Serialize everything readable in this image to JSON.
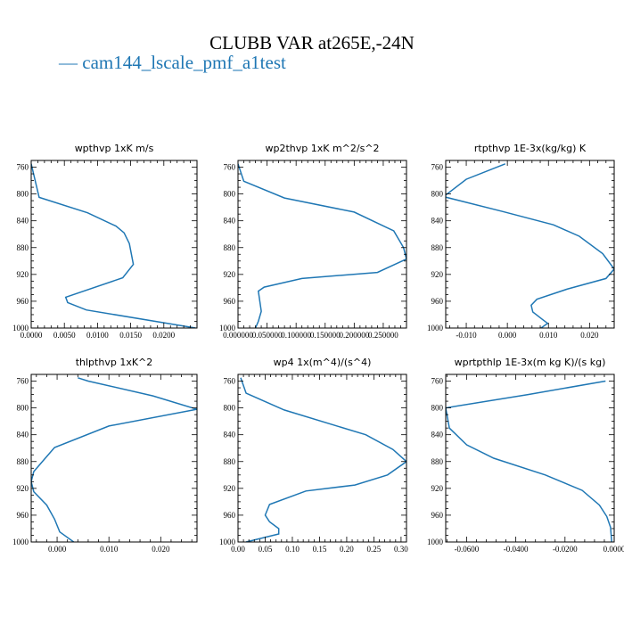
{
  "figure": {
    "title": "CLUBB VAR at265E,-24N",
    "legend_dash": "—",
    "legend_label": "cam144_lscale_pmf_a1test",
    "line_color": "#1f77b4"
  },
  "chart_data": [
    {
      "type": "line",
      "title": "wpthvp   1xK m/s",
      "xlim": [
        0,
        0.025
      ],
      "ylim": [
        1000,
        750
      ],
      "x_ticks": [
        0.0,
        0.005,
        0.01,
        0.015,
        0.02
      ],
      "x_tick_labels": [
        "0.0000",
        "0.0050",
        "0.0100",
        "0.0150",
        "0.0200"
      ],
      "y_ticks": [
        760,
        800,
        840,
        880,
        920,
        960,
        1000
      ],
      "y_tick_labels": [
        "760",
        "800",
        "840",
        "880",
        "920",
        "960",
        "1000"
      ],
      "series": [
        {
          "x": [
            0.0,
            0.0012,
            0.0085,
            0.0128,
            0.014,
            0.0148,
            0.0154,
            0.0138,
            0.0052,
            0.0055,
            0.0083,
            0.0248
          ],
          "y": [
            755,
            805,
            828,
            848,
            858,
            874,
            905,
            925,
            954,
            962,
            973,
            1000
          ]
        }
      ]
    },
    {
      "type": "line",
      "title": "wp2thvp   1xK m^2/s^2",
      "xlim": [
        0,
        0.29
      ],
      "ylim": [
        1000,
        750
      ],
      "x_ticks": [
        0,
        0.05,
        0.1,
        0.15,
        0.2,
        0.25
      ],
      "x_tick_labels": [
        "0.000000",
        "0.050000",
        "0.100000",
        "0.150000",
        "0.200000",
        "0.250000"
      ],
      "y_ticks": [
        760,
        800,
        840,
        880,
        920,
        960,
        1000
      ],
      "y_tick_labels": [
        "760",
        "800",
        "840",
        "880",
        "920",
        "960",
        "1000"
      ],
      "series": [
        {
          "x": [
            0.0,
            0.01,
            0.08,
            0.2,
            0.268,
            0.285,
            0.29,
            0.24,
            0.11,
            0.045,
            0.035,
            0.04,
            0.035,
            0.03
          ],
          "y": [
            755,
            781,
            806,
            827,
            855,
            880,
            897,
            917,
            926,
            939,
            945,
            975,
            990,
            1000
          ]
        }
      ]
    },
    {
      "type": "line",
      "title": "rtpthvp   1E-3x(kg/kg) K",
      "xlim": [
        -0.015,
        0.026
      ],
      "ylim": [
        1000,
        750
      ],
      "x_ticks": [
        -0.01,
        0.0,
        0.01,
        0.02
      ],
      "x_tick_labels": [
        "-0.010",
        "0.000",
        "0.010",
        "0.020"
      ],
      "y_ticks": [
        760,
        800,
        840,
        880,
        920,
        960,
        1000
      ],
      "y_tick_labels": [
        "760",
        "800",
        "840",
        "880",
        "920",
        "960",
        "1000"
      ],
      "series": [
        {
          "x": [
            -0.0005,
            -0.01,
            -0.0155,
            -0.0012,
            0.0112,
            0.0175,
            0.0232,
            0.026,
            0.024,
            0.0145,
            0.0072,
            0.0058,
            0.0062,
            0.0085,
            0.0098,
            0.0082
          ],
          "y": [
            755,
            778,
            804,
            826,
            846,
            863,
            889,
            912,
            926,
            942,
            957,
            966,
            976,
            987,
            993,
            1000
          ]
        }
      ]
    },
    {
      "type": "line",
      "title": "thlpthvp   1xK^2",
      "xlim": [
        -0.005,
        0.027
      ],
      "ylim": [
        1000,
        750
      ],
      "x_ticks": [
        0.0,
        0.01,
        0.02
      ],
      "x_tick_labels": [
        "0.000",
        "0.010",
        "0.020"
      ],
      "y_ticks": [
        760,
        800,
        840,
        880,
        920,
        960,
        1000
      ],
      "y_tick_labels": [
        "760",
        "800",
        "840",
        "880",
        "920",
        "960",
        "1000"
      ],
      "series": [
        {
          "x": [
            0.004,
            0.006,
            0.0185,
            0.027,
            0.01,
            -0.0005,
            -0.0025,
            -0.0045,
            -0.005,
            -0.0045,
            -0.002,
            -0.0005,
            0.0005,
            0.0032
          ],
          "y": [
            755,
            760,
            782,
            802,
            827,
            859,
            877,
            895,
            910,
            925,
            945,
            966,
            985,
            1000
          ]
        }
      ]
    },
    {
      "type": "line",
      "title": "wp4   1x(m^4)/(s^4)",
      "xlim": [
        0,
        0.31
      ],
      "ylim": [
        1000,
        750
      ],
      "x_ticks": [
        0.0,
        0.05,
        0.1,
        0.15,
        0.2,
        0.25,
        0.3
      ],
      "x_tick_labels": [
        "0.00",
        "0.05",
        "0.10",
        "0.15",
        "0.20",
        "0.25",
        "0.30"
      ],
      "y_ticks": [
        760,
        800,
        840,
        880,
        920,
        960,
        1000
      ],
      "y_tick_labels": [
        "760",
        "800",
        "840",
        "880",
        "920",
        "960",
        "1000"
      ],
      "series": [
        {
          "x": [
            0.005,
            0.015,
            0.085,
            0.235,
            0.285,
            0.31,
            0.275,
            0.215,
            0.125,
            0.058,
            0.05,
            0.058,
            0.075,
            0.075,
            0.045,
            0.015
          ],
          "y": [
            755,
            778,
            803,
            840,
            862,
            880,
            900,
            915,
            924,
            944,
            960,
            970,
            980,
            988,
            994,
            1000
          ]
        }
      ]
    },
    {
      "type": "line",
      "title": "wprtpthlp   1E-3x(m kg K)/(s kg)",
      "xlim": [
        -0.0685,
        0.0
      ],
      "ylim": [
        1000,
        750
      ],
      "x_ticks": [
        -0.06,
        -0.04,
        -0.02,
        0.0
      ],
      "x_tick_labels": [
        "-0.0600",
        "-0.0400",
        "-0.0200",
        "0.0000"
      ],
      "y_ticks": [
        760,
        800,
        840,
        880,
        920,
        960,
        1000
      ],
      "y_tick_labels": [
        "760",
        "800",
        "840",
        "880",
        "920",
        "960",
        "1000"
      ],
      "series": [
        {
          "x": [
            -0.0035,
            -0.035,
            -0.0685,
            -0.067,
            -0.06,
            -0.049,
            -0.028,
            -0.013,
            -0.006,
            -0.003,
            -0.0015,
            -0.001
          ],
          "y": [
            760,
            780,
            800,
            830,
            855,
            875,
            900,
            923,
            945,
            962,
            978,
            1000
          ]
        }
      ]
    }
  ]
}
